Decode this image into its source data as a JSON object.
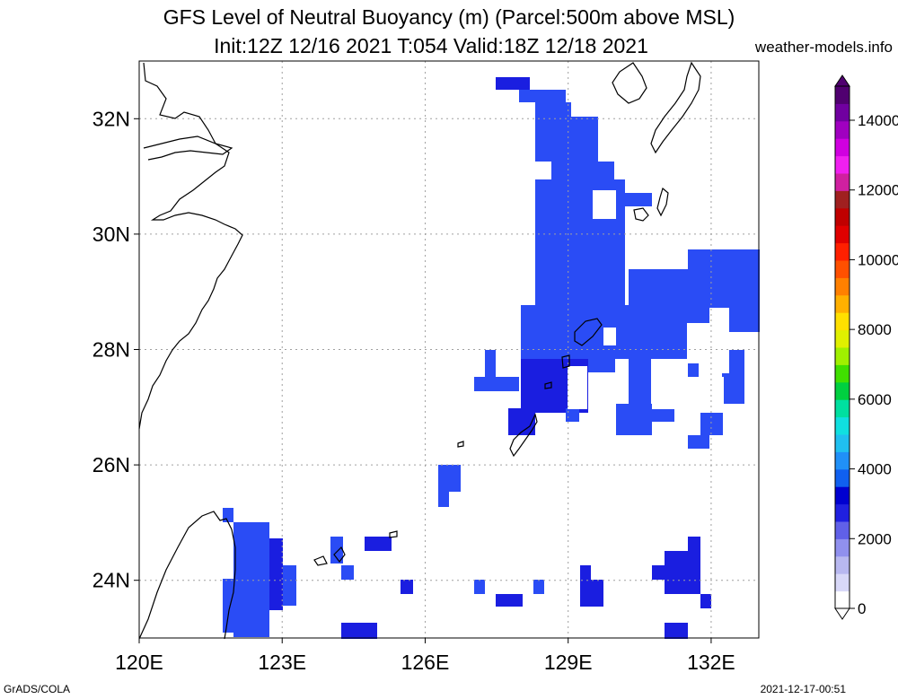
{
  "header": {
    "title_line1": "GFS Level of Neutral Buoyancy (m) (Parcel:500m above MSL)",
    "title_line2": "Init:12Z 12/16 2021 T:054 Valid:18Z 12/18 2021",
    "site": "weather-models.info"
  },
  "footer": {
    "left": "GrADS/COLA",
    "right": "2021-12-17-00:51"
  },
  "map": {
    "lon_labels": [
      "120E",
      "123E",
      "126E",
      "129E",
      "132E"
    ],
    "lat_labels": [
      "32N",
      "30N",
      "28N",
      "26N",
      "24N"
    ],
    "lon_range": [
      120,
      133
    ],
    "lat_range": [
      23,
      33
    ],
    "grid": true,
    "fill_color": "#2a4cf5",
    "fill_color_dark": "#1a1ee0",
    "coast_color": "#000000"
  },
  "colorbar": {
    "labels": [
      "0",
      "2000",
      "4000",
      "6000",
      "8000",
      "10000",
      "12000",
      "14000"
    ],
    "colors": [
      "#ffffff",
      "#d8d8f8",
      "#b8b8f0",
      "#9090ee",
      "#6060e8",
      "#2020e0",
      "#0000d0",
      "#1060f0",
      "#2090f8",
      "#20c0f0",
      "#10e0e0",
      "#00e0a0",
      "#00d040",
      "#40e000",
      "#a0f000",
      "#e0f000",
      "#ffe000",
      "#ffb000",
      "#ff8000",
      "#ff5000",
      "#ff2000",
      "#e00000",
      "#c00000",
      "#a02020",
      "#d020a0",
      "#f020f0",
      "#d000e0",
      "#a000c0",
      "#7000a0",
      "#500070"
    ]
  }
}
